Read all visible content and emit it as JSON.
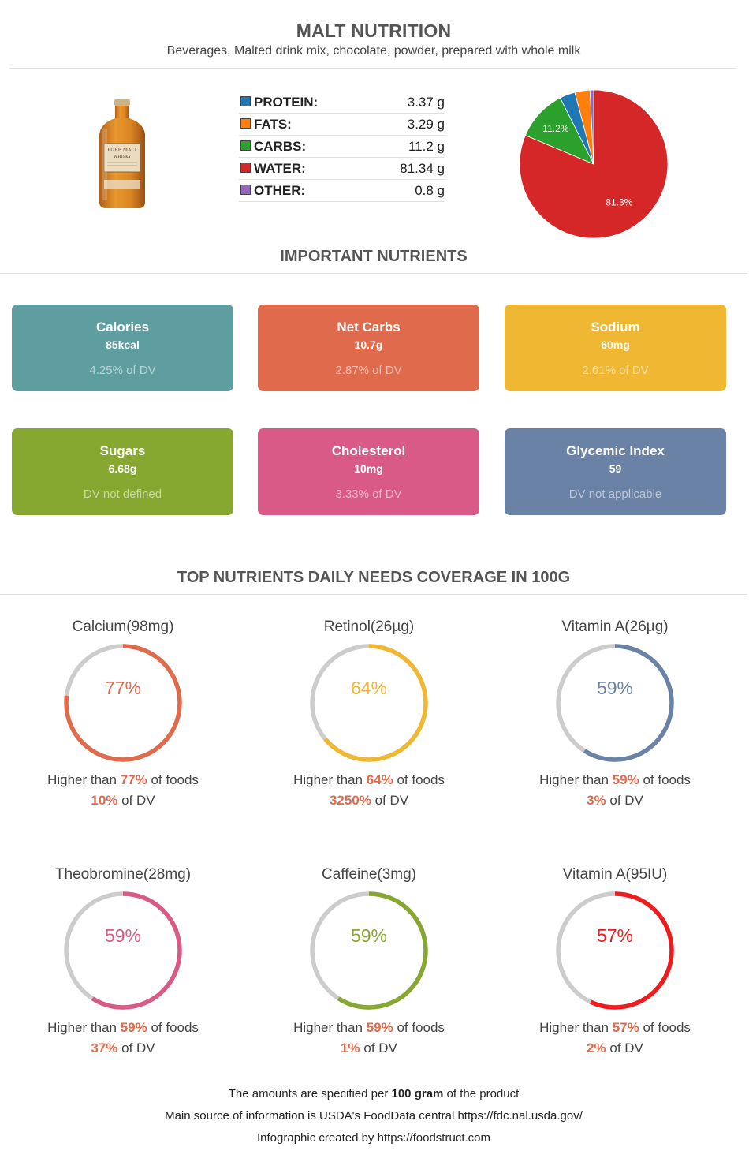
{
  "header": {
    "title": "MALT NUTRITION",
    "subtitle": "Beverages, Malted drink mix, chocolate, powder, prepared with whole milk"
  },
  "product_image": {
    "icon": "malt-bottle-icon",
    "label_lines": [
      "PURE MALT",
      "WHISKY"
    ]
  },
  "macros": [
    {
      "label": "PROTEIN:",
      "value": "3.37 g",
      "color": "#1f77b4"
    },
    {
      "label": "FATS:",
      "value": "3.29 g",
      "color": "#ff7f0e"
    },
    {
      "label": "CARBS:",
      "value": "11.2 g",
      "color": "#2ca02c"
    },
    {
      "label": "WATER:",
      "value": "81.34 g",
      "color": "#d62728"
    },
    {
      "label": "OTHER:",
      "value": "0.8 g",
      "color": "#9467bd"
    }
  ],
  "chart_data": {
    "type": "pie",
    "slices": [
      {
        "label": "Water",
        "value": 81.34,
        "color": "#d62728",
        "display": "81.3%"
      },
      {
        "label": "Carbs",
        "value": 11.2,
        "color": "#2ca02c",
        "display": "11.2%"
      },
      {
        "label": "Protein",
        "value": 3.37,
        "color": "#1f77b4",
        "display": ""
      },
      {
        "label": "Fats",
        "value": 3.29,
        "color": "#ff7f0e",
        "display": ""
      },
      {
        "label": "Other",
        "value": 0.8,
        "color": "#9467bd",
        "display": ""
      }
    ]
  },
  "important": {
    "title": "IMPORTANT NUTRIENTS",
    "cards": [
      {
        "name": "Calories",
        "value": "85kcal",
        "dv": "4.25% of DV",
        "color": "#5f9ea0"
      },
      {
        "name": "Net Carbs",
        "value": "10.7g",
        "dv": "2.87% of DV",
        "color": "#e06a4c"
      },
      {
        "name": "Sodium",
        "value": "60mg",
        "dv": "2.61% of DV",
        "color": "#f0b733"
      },
      {
        "name": "Sugars",
        "value": "6.68g",
        "dv": "DV not defined",
        "color": "#86a830"
      },
      {
        "name": "Cholesterol",
        "value": "10mg",
        "dv": "3.33% of DV",
        "color": "#d95a86"
      },
      {
        "name": "Glycemic Index",
        "value": "59",
        "dv": "DV not applicable",
        "color": "#6a82a6"
      }
    ]
  },
  "coverage": {
    "title": "TOP NUTRIENTS DAILY NEEDS COVERAGE IN 100G",
    "higher_prefix": "Higher than ",
    "higher_suffix": " of foods",
    "dv_suffix": " of DV",
    "items": [
      {
        "name": "Calcium(98mg)",
        "pct": "77%",
        "fraction": 0.77,
        "dv": "10%",
        "color": "#e06a4c"
      },
      {
        "name": "Retinol(26µg)",
        "pct": "64%",
        "fraction": 0.64,
        "dv": "3250%",
        "color": "#f0b733"
      },
      {
        "name": "Vitamin A(26µg)",
        "pct": "59%",
        "fraction": 0.59,
        "dv": "3%",
        "color": "#6a82a6"
      },
      {
        "name": "Theobromine(28mg)",
        "pct": "59%",
        "fraction": 0.59,
        "dv": "37%",
        "color": "#d95a86"
      },
      {
        "name": "Caffeine(3mg)",
        "pct": "59%",
        "fraction": 0.59,
        "dv": "1%",
        "color": "#86a830"
      },
      {
        "name": "Vitamin A(95IU)",
        "pct": "57%",
        "fraction": 0.57,
        "dv": "2%",
        "color": "#ee1c1c"
      }
    ]
  },
  "footer": {
    "line1_pre": "The amounts are specified per ",
    "line1_bold": "100 gram",
    "line1_post": " of the product",
    "line2": "Main source of information is USDA's FoodData central https://fdc.nal.usda.gov/",
    "line3": "Infographic created by https://foodstruct.com"
  }
}
